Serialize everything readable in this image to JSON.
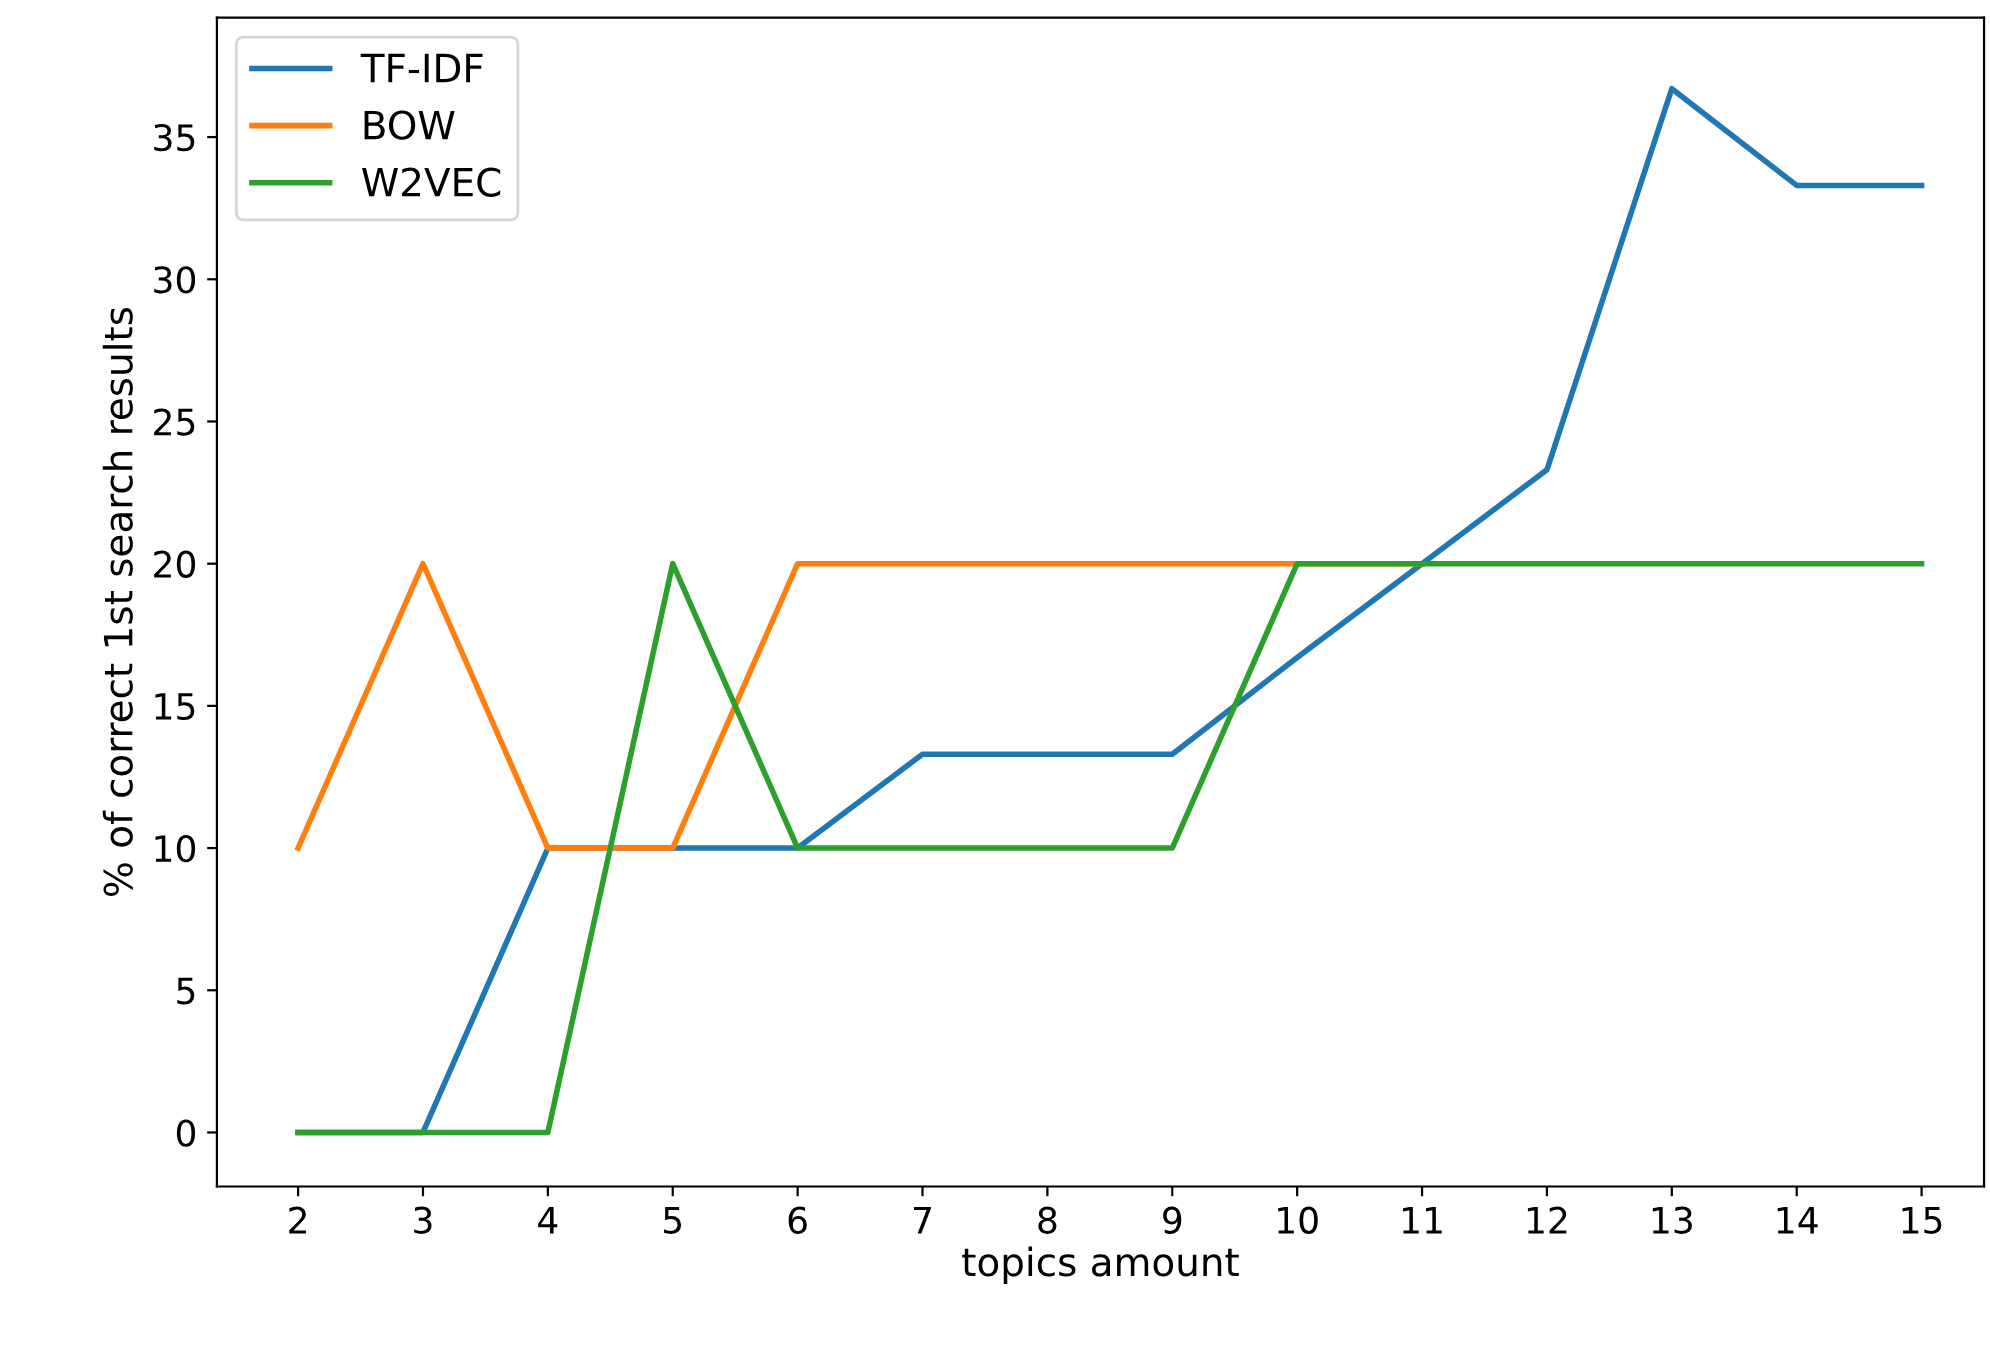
{
  "chart_data": {
    "type": "line",
    "xlabel": "topics amount",
    "ylabel": "% of correct 1st search results",
    "x": [
      2,
      3,
      4,
      5,
      6,
      7,
      8,
      9,
      10,
      11,
      12,
      13,
      14,
      15
    ],
    "series": [
      {
        "name": "TF-IDF",
        "color": "#1f77b4",
        "values": [
          0,
          0,
          10,
          10,
          10,
          13.3,
          13.3,
          13.3,
          16.7,
          20,
          23.3,
          36.7,
          33.3,
          33.3
        ]
      },
      {
        "name": "BOW",
        "color": "#ff7f0e",
        "values": [
          10,
          20,
          10,
          10,
          20,
          20,
          20,
          20,
          20,
          20,
          null,
          null,
          null,
          null
        ]
      },
      {
        "name": "W2VEC",
        "color": "#2ca02c",
        "values": [
          0,
          0,
          0,
          20,
          10,
          10,
          10,
          10,
          20,
          20,
          20,
          20,
          20,
          20
        ]
      }
    ],
    "xlim": [
      1.35,
      15.5
    ],
    "ylim": [
      -1.9,
      39.2
    ],
    "xticks": [
      2,
      3,
      4,
      5,
      6,
      7,
      8,
      9,
      10,
      11,
      12,
      13,
      14,
      15
    ],
    "yticks": [
      0,
      5,
      10,
      15,
      20,
      25,
      30,
      35
    ],
    "grid": false,
    "legend": "top left",
    "marker": "none",
    "line_style": "solid"
  }
}
